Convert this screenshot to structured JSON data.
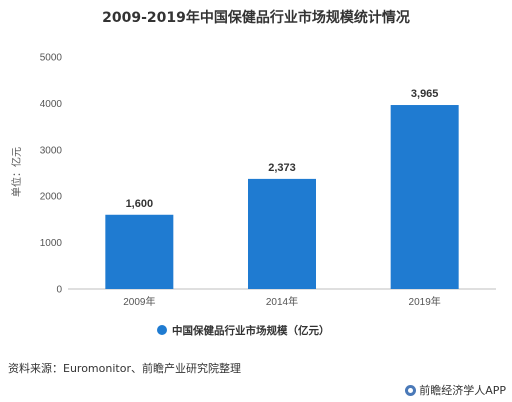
{
  "chart_data": {
    "type": "bar",
    "title": "2009-2019年中国保健品行业市场规模统计情况",
    "ylabel": "单位：亿元",
    "categories": [
      "2009年",
      "2014年",
      "2019年"
    ],
    "series": [
      {
        "name": "中国保健品行业市场规模（亿元）",
        "values": [
          1600,
          2373,
          3965
        ]
      }
    ],
    "data_labels": [
      "1,600",
      "2,373",
      "3,965"
    ],
    "yticks": [
      "0",
      "1000",
      "2000",
      "3000",
      "4000",
      "5000"
    ],
    "ylim": [
      0,
      5000
    ],
    "grid": false,
    "legend_position": "bottom",
    "colors": {
      "bar": "#1f7bd1"
    }
  },
  "source": "资料来源：Euromonitor、前瞻产业研究院整理",
  "brand": "前瞻经济学人APP",
  "brand_icon": "brand-logo-icon"
}
